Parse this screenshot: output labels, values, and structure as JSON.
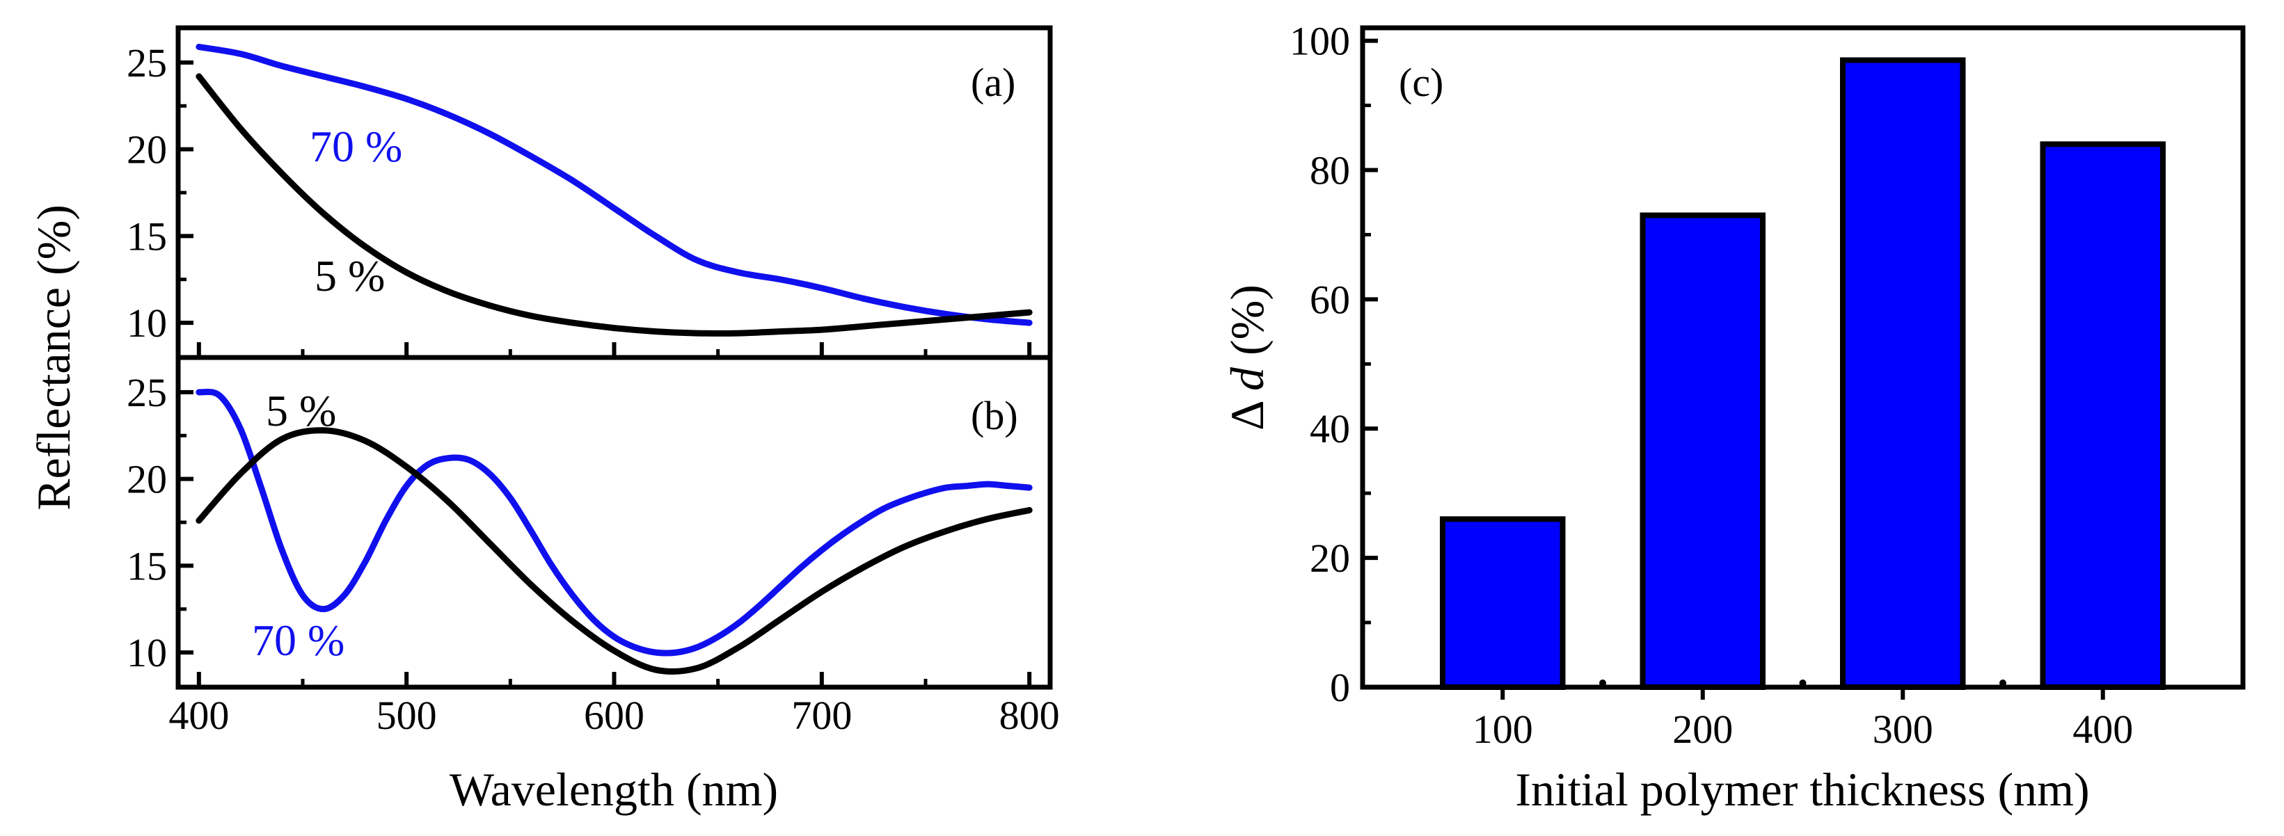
{
  "chart_data": [
    {
      "panel": "(a)",
      "type": "line",
      "xlabel": "Wavelength (nm)",
      "ylabel": "Reflectance (%)",
      "xlim": [
        390,
        810
      ],
      "ylim": [
        8,
        27
      ],
      "xticks": [
        400,
        500,
        600,
        700,
        800
      ],
      "yticks": [
        10,
        15,
        20,
        25
      ],
      "ytick_labels": [
        "10",
        "15",
        "20",
        "25"
      ],
      "series": [
        {
          "name": "70 %",
          "color": "#1010ee",
          "points": [
            [
              400,
              25.9
            ],
            [
              420,
              25.5
            ],
            [
              440,
              24.8
            ],
            [
              460,
              24.2
            ],
            [
              480,
              23.6
            ],
            [
              500,
              22.9
            ],
            [
              520,
              22.0
            ],
            [
              540,
              20.9
            ],
            [
              560,
              19.6
            ],
            [
              580,
              18.2
            ],
            [
              600,
              16.6
            ],
            [
              620,
              15.0
            ],
            [
              640,
              13.6
            ],
            [
              660,
              12.9
            ],
            [
              680,
              12.5
            ],
            [
              700,
              12.0
            ],
            [
              720,
              11.4
            ],
            [
              740,
              10.9
            ],
            [
              760,
              10.5
            ],
            [
              780,
              10.2
            ],
            [
              800,
              10.0
            ]
          ]
        },
        {
          "name": "5 %",
          "color": "#000000",
          "points": [
            [
              400,
              24.2
            ],
            [
              420,
              21.2
            ],
            [
              440,
              18.6
            ],
            [
              460,
              16.3
            ],
            [
              480,
              14.4
            ],
            [
              500,
              12.9
            ],
            [
              520,
              11.8
            ],
            [
              540,
              11.0
            ],
            [
              560,
              10.4
            ],
            [
              580,
              10.0
            ],
            [
              600,
              9.7
            ],
            [
              620,
              9.5
            ],
            [
              640,
              9.4
            ],
            [
              660,
              9.4
            ],
            [
              680,
              9.5
            ],
            [
              700,
              9.6
            ],
            [
              720,
              9.8
            ],
            [
              740,
              10.0
            ],
            [
              760,
              10.2
            ],
            [
              780,
              10.4
            ],
            [
              800,
              10.6
            ]
          ]
        }
      ],
      "annotations": [
        "70 %",
        "5 %"
      ]
    },
    {
      "panel": "(b)",
      "type": "line",
      "xlabel": "Wavelength (nm)",
      "ylabel": "Reflectance (%)",
      "xlim": [
        390,
        810
      ],
      "ylim": [
        8,
        27
      ],
      "xticks": [
        400,
        500,
        600,
        700,
        800
      ],
      "xtick_labels": [
        "400",
        "500",
        "600",
        "700",
        "800"
      ],
      "yticks": [
        10,
        15,
        20,
        25
      ],
      "ytick_labels": [
        "10",
        "15",
        "20",
        "25"
      ],
      "series": [
        {
          "name": "70 %",
          "color": "#1010ee",
          "points": [
            [
              400,
              25.0
            ],
            [
              410,
              24.8
            ],
            [
              420,
              22.9
            ],
            [
              430,
              19.5
            ],
            [
              440,
              15.9
            ],
            [
              450,
              13.3
            ],
            [
              460,
              12.5
            ],
            [
              470,
              13.3
            ],
            [
              480,
              15.2
            ],
            [
              490,
              17.6
            ],
            [
              500,
              19.6
            ],
            [
              510,
              20.8
            ],
            [
              520,
              21.2
            ],
            [
              530,
              21.1
            ],
            [
              540,
              20.3
            ],
            [
              550,
              18.9
            ],
            [
              560,
              17.0
            ],
            [
              570,
              15.0
            ],
            [
              580,
              13.3
            ],
            [
              590,
              11.9
            ],
            [
              600,
              10.9
            ],
            [
              610,
              10.3
            ],
            [
              620,
              10.0
            ],
            [
              630,
              10.0
            ],
            [
              640,
              10.3
            ],
            [
              650,
              10.9
            ],
            [
              660,
              11.7
            ],
            [
              670,
              12.7
            ],
            [
              680,
              13.8
            ],
            [
              690,
              14.9
            ],
            [
              700,
              15.9
            ],
            [
              710,
              16.8
            ],
            [
              720,
              17.6
            ],
            [
              730,
              18.3
            ],
            [
              740,
              18.8
            ],
            [
              750,
              19.2
            ],
            [
              760,
              19.5
            ],
            [
              770,
              19.6
            ],
            [
              780,
              19.7
            ],
            [
              790,
              19.6
            ],
            [
              800,
              19.5
            ]
          ]
        },
        {
          "name": "5 %",
          "color": "#000000",
          "points": [
            [
              400,
              17.6
            ],
            [
              420,
              20.3
            ],
            [
              440,
              22.3
            ],
            [
              460,
              22.8
            ],
            [
              480,
              22.2
            ],
            [
              500,
              20.7
            ],
            [
              520,
              18.7
            ],
            [
              540,
              16.3
            ],
            [
              560,
              13.9
            ],
            [
              580,
              11.8
            ],
            [
              600,
              10.1
            ],
            [
              620,
              9.0
            ],
            [
              640,
              9.1
            ],
            [
              660,
              10.3
            ],
            [
              680,
              11.9
            ],
            [
              700,
              13.5
            ],
            [
              720,
              14.9
            ],
            [
              740,
              16.1
            ],
            [
              760,
              17.0
            ],
            [
              780,
              17.7
            ],
            [
              800,
              18.2
            ]
          ]
        }
      ],
      "annotations": [
        "5 %",
        "70 %"
      ]
    },
    {
      "panel": "(c)",
      "type": "bar",
      "xlabel": "Initial polymer thickness (nm)",
      "ylabel_prefix": "Δ",
      "ylabel_var": "d",
      "ylabel_suffix": "(%)",
      "categories": [
        "100",
        "200",
        "300",
        "400"
      ],
      "values": [
        26,
        73,
        97,
        84
      ],
      "ylim": [
        0,
        102
      ],
      "yticks": [
        0,
        20,
        40,
        60,
        80,
        100
      ],
      "ytick_labels": [
        "0",
        "20",
        "40",
        "60",
        "80",
        "100"
      ],
      "bar_color": "#0000ff"
    }
  ]
}
